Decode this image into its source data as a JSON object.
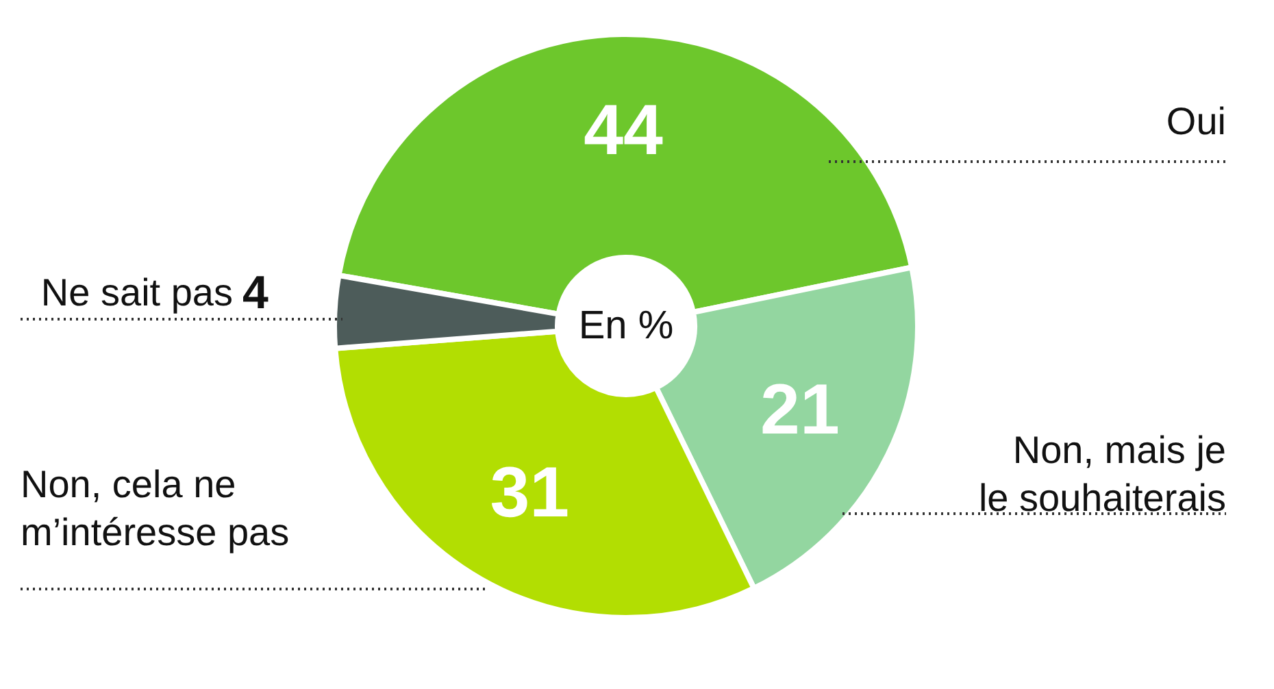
{
  "chart_data": {
    "type": "donut",
    "categories": [
      "Oui",
      "Non, mais je le souhaiterais",
      "Non, cela ne m’intéresse pas",
      "Ne sait pas"
    ],
    "values": [
      44,
      21,
      31,
      4
    ],
    "colors": [
      "#6dc72c",
      "#93d6a0",
      "#b2de02",
      "#4d5c5a"
    ],
    "data_labels": true,
    "annotations": [
      "En %"
    ]
  }
}
